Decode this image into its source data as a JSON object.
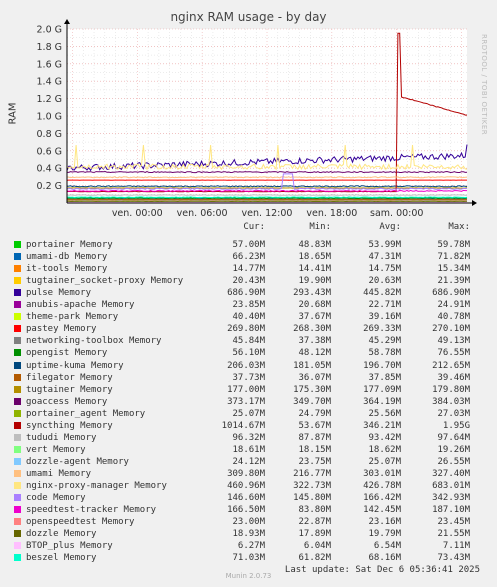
{
  "chart_data": {
    "type": "line",
    "title": "nginx RAM usage - by day",
    "ylabel": "RAM",
    "ylim": [
      0,
      2.0
    ],
    "y_ticks": [
      "0.2 G",
      "0.4 G",
      "0.6 G",
      "0.8 G",
      "1.0 G",
      "1.2 G",
      "1.4 G",
      "1.6 G",
      "1.8 G",
      "2.0 G"
    ],
    "x_ticks": [
      "ven. 00:00",
      "ven. 06:00",
      "ven. 12:00",
      "ven. 18:00",
      "sam. 00:00"
    ],
    "x_range_hours": [
      -6.5,
      30.5
    ],
    "x_tick_hours": [
      0,
      6,
      12,
      18,
      24
    ],
    "grid": true,
    "headers": [
      "Cur:",
      "Min:",
      "Avg:",
      "Max:"
    ],
    "series": [
      {
        "name": "portainer Memory",
        "color": "#00cc00",
        "cur": "57.00M",
        "min": "48.83M",
        "avg": "53.99M",
        "max": "59.78M"
      },
      {
        "name": "umami-db Memory",
        "color": "#0066b3",
        "cur": "66.23M",
        "min": "18.65M",
        "avg": "47.31M",
        "max": "71.82M"
      },
      {
        "name": "it-tools Memory",
        "color": "#ff8000",
        "cur": "14.77M",
        "min": "14.41M",
        "avg": "14.75M",
        "max": "15.34M"
      },
      {
        "name": "tugtainer_socket-proxy Memory",
        "color": "#ffcc00",
        "cur": "20.43M",
        "min": "19.90M",
        "avg": "20.63M",
        "max": "21.39M"
      },
      {
        "name": "pulse Memory",
        "color": "#330099",
        "cur": "686.90M",
        "min": "293.43M",
        "avg": "445.82M",
        "max": "686.90M"
      },
      {
        "name": "anubis-apache Memory",
        "color": "#990099",
        "cur": "23.85M",
        "min": "20.68M",
        "avg": "22.71M",
        "max": "24.91M"
      },
      {
        "name": "theme-park Memory",
        "color": "#ccff00",
        "cur": "40.40M",
        "min": "37.67M",
        "avg": "39.16M",
        "max": "40.78M"
      },
      {
        "name": "pastey Memory",
        "color": "#ff0000",
        "cur": "269.80M",
        "min": "268.30M",
        "avg": "269.33M",
        "max": "270.10M"
      },
      {
        "name": "networking-toolbox Memory",
        "color": "#808080",
        "cur": "45.84M",
        "min": "37.38M",
        "avg": "45.29M",
        "max": "49.13M"
      },
      {
        "name": "opengist Memory",
        "color": "#008f00",
        "cur": "56.10M",
        "min": "48.12M",
        "avg": "58.78M",
        "max": "76.55M"
      },
      {
        "name": "uptime-kuma Memory",
        "color": "#00487d",
        "cur": "206.03M",
        "min": "181.05M",
        "avg": "196.70M",
        "max": "212.65M"
      },
      {
        "name": "filegator Memory",
        "color": "#b35a00",
        "cur": "37.73M",
        "min": "36.07M",
        "avg": "37.85M",
        "max": "39.46M"
      },
      {
        "name": "tugtainer Memory",
        "color": "#b38f00",
        "cur": "177.00M",
        "min": "175.30M",
        "avg": "177.09M",
        "max": "179.80M"
      },
      {
        "name": "goaccess Memory",
        "color": "#6b006b",
        "cur": "373.17M",
        "min": "349.70M",
        "avg": "364.19M",
        "max": "384.03M"
      },
      {
        "name": "portainer_agent Memory",
        "color": "#8fb300",
        "cur": "25.07M",
        "min": "24.79M",
        "avg": "25.56M",
        "max": "27.03M"
      },
      {
        "name": "syncthing Memory",
        "color": "#b30000",
        "cur": "1014.67M",
        "min": "53.67M",
        "avg": "346.21M",
        "max": "1.95G"
      },
      {
        "name": "tududi Memory",
        "color": "#bebebe",
        "cur": "96.32M",
        "min": "87.87M",
        "avg": "93.42M",
        "max": "97.64M"
      },
      {
        "name": "vert Memory",
        "color": "#80ff80",
        "cur": "18.61M",
        "min": "18.15M",
        "avg": "18.62M",
        "max": "19.26M"
      },
      {
        "name": "dozzle-agent Memory",
        "color": "#80c9ff",
        "cur": "24.12M",
        "min": "23.75M",
        "avg": "25.07M",
        "max": "26.55M"
      },
      {
        "name": "umami Memory",
        "color": "#ffc080",
        "cur": "309.80M",
        "min": "216.77M",
        "avg": "303.01M",
        "max": "327.40M"
      },
      {
        "name": "nginx-proxy-manager Memory",
        "color": "#ffe680",
        "cur": "460.96M",
        "min": "322.73M",
        "avg": "426.78M",
        "max": "683.01M"
      },
      {
        "name": "code Memory",
        "color": "#aa80ff",
        "cur": "146.60M",
        "min": "145.80M",
        "avg": "166.42M",
        "max": "342.93M"
      },
      {
        "name": "speedtest-tracker Memory",
        "color": "#ee00cc",
        "cur": "166.50M",
        "min": "83.80M",
        "avg": "142.45M",
        "max": "187.10M"
      },
      {
        "name": "openspeedtest Memory",
        "color": "#ff8080",
        "cur": "23.00M",
        "min": "22.87M",
        "avg": "23.16M",
        "max": "23.45M"
      },
      {
        "name": "dozzle Memory",
        "color": "#666600",
        "cur": "18.93M",
        "min": "17.89M",
        "avg": "19.79M",
        "max": "21.55M"
      },
      {
        "name": "BTOP_plus Memory",
        "color": "#ffbfff",
        "cur": "6.27M",
        "min": "6.04M",
        "avg": "6.54M",
        "max": "7.11M"
      },
      {
        "name": "beszel Memory",
        "color": "#00ffcc",
        "cur": "71.03M",
        "min": "61.82M",
        "avg": "68.16M",
        "max": "73.43M"
      }
    ]
  },
  "watermark": "RRDTOOL / TOBI OETIKER",
  "last_update": "Last update:  Sat Dec  6 05:36:41 2025",
  "footer": "Munin 2.0.73",
  "colors": {
    "background": "#f0f0f0",
    "plot": "#ffffff",
    "grid_major": "#e8a0a0",
    "grid_minor": "#d8d8d8"
  }
}
